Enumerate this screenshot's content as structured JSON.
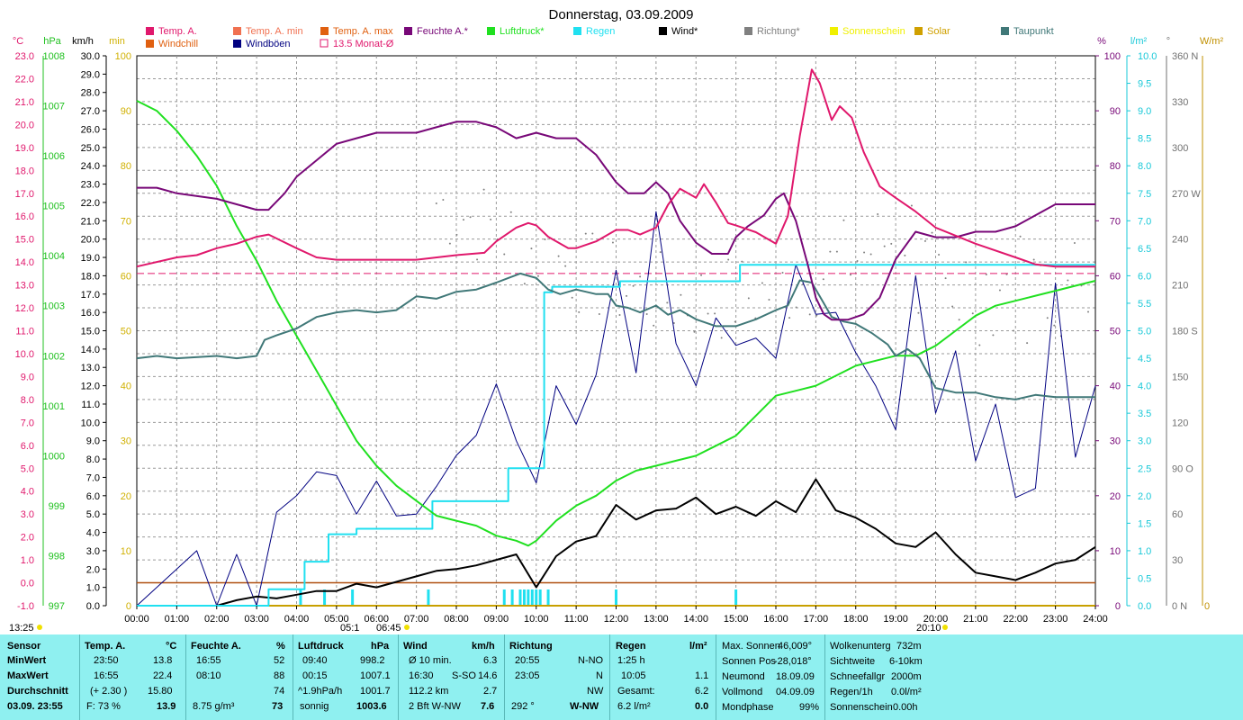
{
  "title": "Donnerstag, 03.09.2009",
  "legend": [
    {
      "label": "Temp. A.",
      "color": "#e0186c"
    },
    {
      "label": "Temp. A. min",
      "color": "#f07050"
    },
    {
      "label": "Temp. A. max",
      "color": "#e06010"
    },
    {
      "label": "Feuchte A.*",
      "color": "#780878"
    },
    {
      "label": "Luftdruck*",
      "color": "#20e020"
    },
    {
      "label": "Regen",
      "color": "#20e0f0"
    },
    {
      "label": "Wind*",
      "color": "#000000"
    },
    {
      "label": "Richtung*",
      "color": "#808080"
    },
    {
      "label": "Sonnenschein",
      "color": "#f0f000"
    },
    {
      "label": "Solar",
      "color": "#d0a000"
    },
    {
      "label": "Taupunkt",
      "color": "#407878"
    },
    {
      "label": "Windchill",
      "color": "#e06010"
    },
    {
      "label": "Windböen",
      "color": "#000080"
    },
    {
      "label": "13.5 Monat-Ø",
      "color": "#e0186c"
    }
  ],
  "axis_units": {
    "temp": "°C",
    "press": "hPa",
    "wind": "km/h",
    "sun": "min",
    "hum": "%",
    "rain": "l/m²",
    "dir": "°",
    "solar": "W/m²"
  },
  "left_axes": {
    "temp": [
      "23.0",
      "22.0",
      "21.0",
      "20.0",
      "19.0",
      "18.0",
      "17.0",
      "16.0",
      "15.0",
      "14.0",
      "13.0",
      "12.0",
      "11.0",
      "10.0",
      "9.0",
      "8.0",
      "7.0",
      "6.0",
      "5.0",
      "4.0",
      "3.0",
      "2.0",
      "1.0",
      "0.0",
      "-1.0"
    ],
    "press": [
      "1008",
      "1007",
      "1006",
      "1005",
      "1004",
      "1003",
      "1002",
      "1001",
      "1000",
      "999",
      "998",
      "997"
    ],
    "wind": [
      "30.0",
      "29.0",
      "28.0",
      "27.0",
      "26.0",
      "25.0",
      "24.0",
      "23.0",
      "22.0",
      "21.0",
      "20.0",
      "19.0",
      "18.0",
      "17.0",
      "16.0",
      "15.0",
      "14.0",
      "13.0",
      "12.0",
      "11.0",
      "10.0",
      "9.0",
      "8.0",
      "7.0",
      "6.0",
      "5.0",
      "4.0",
      "3.0",
      "2.0",
      "1.0",
      "0.0"
    ],
    "sun": [
      "100",
      "90",
      "80",
      "70",
      "60",
      "50",
      "40",
      "30",
      "20",
      "10",
      "0"
    ]
  },
  "right_axes": {
    "hum": [
      "100",
      "90",
      "80",
      "70",
      "60",
      "50",
      "40",
      "30",
      "20",
      "10",
      "0"
    ],
    "rain": [
      "10.0",
      "9.5",
      "9.0",
      "8.5",
      "8.0",
      "7.5",
      "7.0",
      "6.5",
      "6.0",
      "5.5",
      "5.0",
      "4.5",
      "4.0",
      "3.5",
      "3.0",
      "2.5",
      "2.0",
      "1.5",
      "1.0",
      "0.5",
      "0.0"
    ],
    "dir": [
      "360 N",
      "330",
      "300",
      "270 W",
      "240",
      "210",
      "180 S",
      "150",
      "120",
      "90  O",
      "60",
      "30",
      "0  N"
    ],
    "solar": [
      "0"
    ]
  },
  "x_ticks": [
    "00:00",
    "01:00",
    "02:00",
    "03:00",
    "04:00",
    "05:00",
    "06:00",
    "07:00",
    "08:00",
    "09:00",
    "10:00",
    "11:00",
    "12:00",
    "13:00",
    "14:00",
    "15:00",
    "16:00",
    "17:00",
    "18:00",
    "19:00",
    "20:00",
    "21:00",
    "22:00",
    "23:00",
    "24:00"
  ],
  "sun_markers": {
    "left": "13:25",
    "sunrise": "05:1",
    "sunrise2": "06:45",
    "sunset": "20:10"
  },
  "chart_data": {
    "type": "line",
    "title": "Donnerstag, 03.09.2009",
    "x_unit": "hour of day",
    "xlim": [
      0,
      24
    ],
    "temp_ylim": [
      -1,
      23
    ],
    "grid": true,
    "series": [
      {
        "name": "Temp. A.",
        "unit": "°C",
        "x": [
          0,
          1,
          1.5,
          2,
          2.5,
          3,
          3.3,
          4,
          4.5,
          5,
          6,
          7,
          8,
          8.7,
          9,
          9.5,
          9.8,
          10,
          10.3,
          10.8,
          11,
          11.5,
          12,
          12.3,
          12.6,
          13,
          13.3,
          13.6,
          14,
          14.2,
          14.5,
          14.8,
          15,
          15.5,
          16,
          16.3,
          16.6,
          16.9,
          17.1,
          17.4,
          17.6,
          17.9,
          18.2,
          18.6,
          19,
          19.5,
          20,
          21,
          22,
          22.5,
          23,
          24
        ],
        "y": [
          13.8,
          14.2,
          14.3,
          14.6,
          14.8,
          15.1,
          15.2,
          14.6,
          14.2,
          14.1,
          14.1,
          14.1,
          14.3,
          14.4,
          14.9,
          15.5,
          15.7,
          15.6,
          15.1,
          14.6,
          14.6,
          14.9,
          15.4,
          15.4,
          15.2,
          15.5,
          16.5,
          17.2,
          16.8,
          17.4,
          16.6,
          15.7,
          15.6,
          15.3,
          14.8,
          16,
          19.5,
          22.4,
          21.8,
          20.2,
          20.8,
          20.3,
          18.8,
          17.3,
          16.8,
          16.2,
          15.5,
          14.8,
          14.2,
          13.9,
          13.8,
          13.8
        ]
      },
      {
        "name": "Feuchte A.*",
        "unit": "%",
        "x": [
          0,
          0.5,
          1,
          2,
          2.5,
          3,
          3.3,
          3.7,
          4,
          4.5,
          5,
          5.5,
          6,
          7,
          7.5,
          8,
          8.5,
          9,
          9.5,
          10,
          10.5,
          11,
          11.5,
          12,
          12.3,
          12.7,
          13,
          13.3,
          13.6,
          14,
          14.4,
          14.8,
          15,
          15.3,
          15.7,
          16,
          16.2,
          16.5,
          16.8,
          17,
          17.2,
          17.4,
          17.8,
          18.2,
          18.6,
          19,
          19.5,
          20,
          20.5,
          21,
          21.5,
          22,
          22.5,
          23,
          24
        ],
        "y": [
          76,
          76,
          75,
          74,
          73,
          72,
          72,
          75,
          78,
          81,
          84,
          85,
          86,
          86,
          87,
          88,
          88,
          87,
          85,
          86,
          85,
          85,
          82,
          77,
          75,
          75,
          77,
          75,
          70,
          66,
          64,
          64,
          67,
          69,
          71,
          74,
          75,
          70,
          62,
          56,
          53,
          52,
          52,
          53,
          56,
          63,
          68,
          67,
          67,
          68,
          68,
          69,
          71,
          73,
          73
        ]
      },
      {
        "name": "Luftdruck*",
        "unit": "hPa",
        "x": [
          0,
          0.5,
          1,
          1.5,
          2,
          2.5,
          3,
          3.5,
          4,
          4.5,
          5,
          5.5,
          6,
          6.5,
          7,
          7.5,
          8,
          8.5,
          9,
          9.5,
          9.8,
          10,
          10.5,
          11,
          11.5,
          12,
          12.5,
          13,
          13.5,
          14,
          14.5,
          15,
          15.5,
          16,
          16.5,
          17,
          17.5,
          18,
          18.5,
          19,
          19.5,
          20,
          20.5,
          21,
          21.5,
          22,
          22.5,
          23,
          23.5,
          24
        ],
        "y": [
          1007.1,
          1006.9,
          1006.5,
          1006,
          1005.4,
          1004.6,
          1003.9,
          1003.1,
          1002.4,
          1001.7,
          1001,
          1000.3,
          999.8,
          999.4,
          999.1,
          998.8,
          998.7,
          998.6,
          998.4,
          998.3,
          998.2,
          998.3,
          998.7,
          999,
          999.2,
          999.5,
          999.7,
          999.8,
          999.9,
          1000,
          1000.2,
          1000.4,
          1000.8,
          1001.2,
          1001.3,
          1001.4,
          1001.6,
          1001.8,
          1001.9,
          1002,
          1002,
          1002.2,
          1002.5,
          1002.8,
          1003,
          1003.1,
          1003.2,
          1003.3,
          1003.4,
          1003.5
        ]
      },
      {
        "name": "Taupunkt",
        "unit": "°C",
        "x": [
          0,
          0.5,
          1,
          2,
          2.5,
          3,
          3.2,
          3.5,
          4,
          4.5,
          5,
          5.5,
          6,
          6.5,
          7,
          7.5,
          8,
          8.5,
          9,
          9.3,
          9.6,
          10,
          10.3,
          10.6,
          11,
          11.5,
          11.8,
          12,
          12.3,
          12.6,
          13,
          13.3,
          13.6,
          14,
          14.5,
          15,
          15.5,
          16,
          16.3,
          16.6,
          16.9,
          17.1,
          17.4,
          17.7,
          18,
          18.4,
          18.8,
          19,
          19.3,
          19.6,
          20,
          20.5,
          21,
          21.5,
          22,
          22.5,
          23,
          24
        ],
        "y": [
          9.8,
          9.9,
          9.8,
          9.9,
          9.8,
          9.9,
          10.6,
          10.8,
          11.1,
          11.6,
          11.8,
          11.9,
          11.8,
          11.9,
          12.5,
          12.4,
          12.7,
          12.8,
          13.1,
          13.3,
          13.5,
          13.3,
          12.8,
          12.6,
          12.8,
          12.6,
          12.6,
          12.1,
          12,
          11.8,
          12.1,
          11.7,
          11.9,
          11.5,
          11.2,
          11.2,
          11.5,
          11.9,
          12.1,
          13.2,
          13.1,
          12.5,
          11.6,
          11.4,
          11.3,
          10.9,
          10.4,
          9.9,
          10.2,
          9.8,
          8.5,
          8.3,
          8.3,
          8.1,
          8,
          8.2,
          8.1,
          8.1
        ]
      },
      {
        "name": "Regen",
        "unit": "l/m²",
        "x": [
          0,
          3.2,
          3.3,
          4.1,
          4.2,
          4.7,
          4.8,
          5.4,
          5.5,
          7.3,
          7.4,
          9.2,
          9.3,
          10.2,
          10.4,
          12,
          12.1,
          15,
          15.1,
          24
        ],
        "y": [
          0,
          0,
          0.3,
          0.3,
          0.8,
          0.8,
          1.3,
          1.3,
          1.4,
          1.4,
          1.9,
          1.9,
          2.5,
          5.7,
          5.8,
          5.8,
          5.9,
          5.9,
          6.2,
          6.2
        ]
      },
      {
        "name": "Wind*",
        "unit": "km/h",
        "x": [
          0,
          2,
          2.5,
          3,
          3.5,
          4,
          4.5,
          5,
          5.5,
          6,
          6.5,
          7,
          7.5,
          8,
          8.5,
          9,
          9.5,
          10,
          10.5,
          11,
          11.5,
          12,
          12.5,
          13,
          13.5,
          14,
          14.5,
          15,
          15.5,
          16,
          16.5,
          17,
          17.5,
          18,
          18.5,
          19,
          19.5,
          20,
          20.5,
          21,
          21.5,
          22,
          22.5,
          23,
          23.5,
          24
        ],
        "y": [
          0,
          0,
          0.3,
          0.5,
          0.4,
          0.6,
          0.8,
          0.8,
          1.2,
          1,
          1.3,
          1.6,
          1.9,
          2,
          2.2,
          2.5,
          2.8,
          1,
          2.7,
          3.5,
          3.8,
          5.5,
          4.7,
          5.2,
          5.3,
          5.9,
          5,
          5.4,
          4.9,
          5.7,
          5.1,
          6.9,
          5.2,
          4.8,
          4.2,
          3.4,
          3.2,
          4,
          2.8,
          1.8,
          1.6,
          1.4,
          1.8,
          2.3,
          2.5,
          3.2
        ]
      },
      {
        "name": "Windböen",
        "unit": "km/h",
        "x": [
          0,
          1.5,
          2,
          2.5,
          3,
          3.5,
          4,
          4.5,
          5,
          5.5,
          6,
          6.5,
          7,
          7.5,
          8,
          8.5,
          9,
          9.5,
          10,
          10.5,
          11,
          11.5,
          12,
          12.5,
          13,
          13.5,
          14,
          14.5,
          15,
          15.5,
          16,
          16.5,
          17,
          17.5,
          18,
          18.5,
          19,
          19.5,
          20,
          20.5,
          21,
          21.5,
          22,
          22.5,
          23,
          23.5,
          24
        ],
        "y": [
          0,
          3,
          0,
          2.8,
          0,
          5.1,
          6,
          7.3,
          7.1,
          5,
          6.8,
          4.9,
          5,
          6.5,
          8.2,
          9.3,
          12.1,
          9,
          6.7,
          12,
          9.9,
          12.6,
          18.3,
          12.7,
          21.5,
          14.3,
          12,
          15.7,
          14.2,
          14.6,
          13.5,
          18.6,
          15.9,
          16,
          13.8,
          12,
          9.6,
          18,
          10.5,
          13.9,
          7.9,
          11,
          5.9,
          6.4,
          17.6,
          8.1,
          12
        ]
      },
      {
        "name": "13.5 Monat-Ø",
        "unit": "°C",
        "x": [
          0,
          24
        ],
        "y": [
          13.5,
          13.5
        ]
      },
      {
        "name": "Solar",
        "unit": "W/m²",
        "x": [
          0,
          24
        ],
        "y": [
          0,
          0
        ]
      }
    ]
  },
  "summary": {
    "sensor": {
      "header": "Sensor",
      "rows": [
        "MinWert",
        "MaxWert",
        "Durchschnitt",
        "03.09. 23:55"
      ]
    },
    "temp": {
      "header": "Temp. A.",
      "unit": "°C",
      "rows": [
        [
          "23:50",
          "13.8"
        ],
        [
          "16:55",
          "22.4"
        ],
        [
          "(+ 2.30 )",
          "15.80"
        ],
        [
          "F: 73 %",
          "13.9"
        ]
      ]
    },
    "hum": {
      "header": "Feuchte A.",
      "unit": "%",
      "rows": [
        [
          "16:55",
          "52"
        ],
        [
          "08:10",
          "88"
        ],
        [
          "",
          "74"
        ],
        [
          "8.75 g/m³",
          "73"
        ]
      ]
    },
    "press": {
      "header": "Luftdruck",
      "unit": "hPa",
      "rows": [
        [
          "09:40",
          "998.2"
        ],
        [
          "00:15",
          "1007.1"
        ],
        [
          "^1.9hPa/h",
          "1001.7"
        ],
        [
          "sonnig",
          "1003.6"
        ]
      ]
    },
    "wind": {
      "header": "Wind",
      "unit": "km/h",
      "rows": [
        [
          "Ø 10 min.",
          "",
          "6.3"
        ],
        [
          "16:30",
          "S-SO",
          "14.6"
        ],
        [
          "112.2 km",
          "",
          "2.7"
        ],
        [
          "2 Bft W-NW",
          "",
          "7.6"
        ]
      ]
    },
    "dir": {
      "header": "Richtung",
      "rows": [
        [
          "20:55",
          "N-NO"
        ],
        [
          "23:05",
          "N"
        ],
        [
          "",
          "NW"
        ],
        [
          "292 °",
          "W-NW"
        ]
      ]
    },
    "rain": {
      "header": "Regen",
      "unit": "l/m²",
      "rows": [
        [
          "1:25 h",
          ""
        ],
        [
          "10:05",
          "1.1"
        ],
        [
          "Gesamt:",
          "6.2"
        ],
        [
          "6.2 l/m²",
          "0.0"
        ]
      ]
    },
    "astro1": {
      "rows": [
        [
          "Max. Sonnen",
          "46,009°"
        ],
        [
          "Sonnen Pos",
          "-28,018°"
        ],
        [
          "Neumond",
          "18.09.09"
        ],
        [
          "Vollmond",
          "04.09.09"
        ],
        [
          "Mondphase",
          "99%"
        ]
      ]
    },
    "astro2": {
      "rows": [
        [
          "Wolkenunterg",
          "732m"
        ],
        [
          "Sichtweite",
          "6-10km"
        ],
        [
          "Schneefallgr",
          "2000m"
        ],
        [
          "Regen/1h",
          "0.0l/m²"
        ],
        [
          "Sonnenschein",
          "0.00h"
        ]
      ]
    }
  }
}
